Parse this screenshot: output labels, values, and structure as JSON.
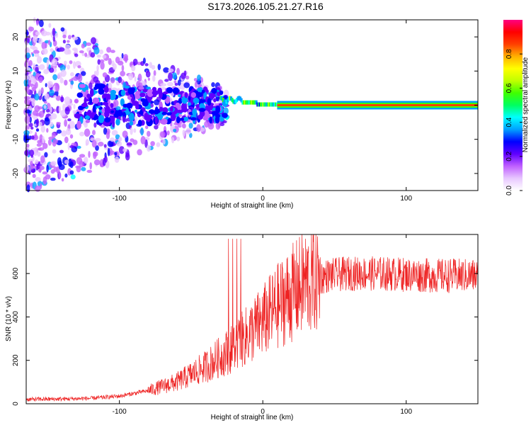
{
  "title": "S173.2026.105.21.27.R16",
  "chart_data": [
    {
      "type": "heatmap",
      "name": "spectrogram",
      "xlabel": "Height of straight line (km)",
      "ylabel": "Frequency (Hz)",
      "xlim": [
        -165,
        150
      ],
      "ylim": [
        -25,
        25
      ],
      "xticks": [
        -100,
        0,
        100
      ],
      "yticks": [
        -20,
        -10,
        0,
        10,
        20
      ],
      "xtick_labels": [
        "-100",
        "0",
        "100"
      ],
      "ytick_labels": [
        "-20",
        "-10",
        "0",
        "10",
        "20"
      ],
      "colorbar": {
        "label": "Normalized spectral amplitude",
        "range": [
          0,
          1
        ],
        "ticks": [
          0.0,
          0.2,
          0.4,
          0.6,
          0.8
        ],
        "tick_labels": [
          "0.0",
          "0.2",
          "0.4",
          "0.6",
          "0.8"
        ],
        "colors": [
          "#ffffff",
          "#e8c8ff",
          "#c060ff",
          "#6000ff",
          "#0000ff",
          "#00a0ff",
          "#00ffff",
          "#00ff60",
          "#40ff00",
          "#c0ff00",
          "#ffff00",
          "#ffb000",
          "#ff4000",
          "#ff0000",
          "#ff0080"
        ]
      },
      "carrier": {
        "start_km": 10,
        "end_km": 150,
        "frequency_hz": 0,
        "amplitude": 0.85
      },
      "lock_transition_km": [
        -30,
        10
      ]
    },
    {
      "type": "line",
      "name": "snr",
      "xlabel": "Height of straight line (km)",
      "ylabel": "SNR (10 * v/v)",
      "xlim": [
        -165,
        150
      ],
      "ylim": [
        0,
        780
      ],
      "xticks": [
        -100,
        0,
        100
      ],
      "yticks": [
        0,
        200,
        400,
        600
      ],
      "xtick_labels": [
        "-100",
        "0",
        "100"
      ],
      "ytick_labels": [
        "0",
        "200",
        "400",
        "600"
      ],
      "color": "#ee2222",
      "trend": {
        "x": [
          -165,
          -140,
          -120,
          -100,
          -80,
          -60,
          -40,
          -20,
          0,
          15,
          30,
          45,
          60,
          80,
          100,
          120,
          150
        ],
        "y": [
          20,
          22,
          25,
          35,
          60,
          100,
          170,
          260,
          380,
          480,
          560,
          590,
          600,
          600,
          595,
          590,
          590
        ]
      }
    }
  ]
}
